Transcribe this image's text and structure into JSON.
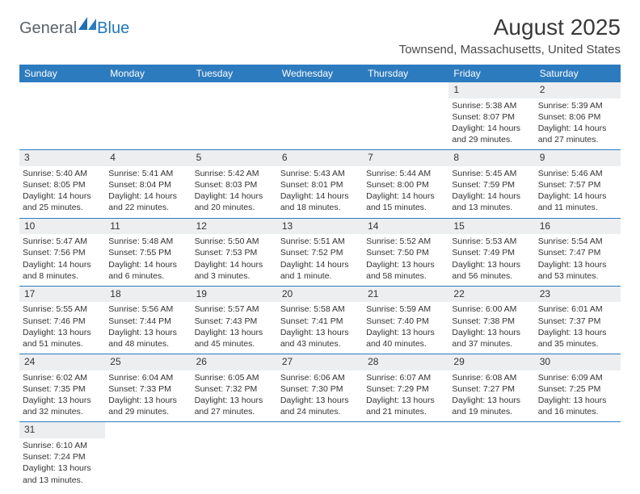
{
  "logo": {
    "text1": "General",
    "text2": "Blue"
  },
  "title": {
    "month": "August 2025",
    "location": "Townsend, Massachusetts, United States"
  },
  "colors": {
    "header_bg": "#2d7bbf",
    "header_text": "#ffffff",
    "daynum_bg": "#edeef0",
    "rule": "#2d7bbf",
    "text": "#333333"
  },
  "day_headers": [
    "Sunday",
    "Monday",
    "Tuesday",
    "Wednesday",
    "Thursday",
    "Friday",
    "Saturday"
  ],
  "weeks": [
    [
      null,
      null,
      null,
      null,
      null,
      {
        "n": "1",
        "sr": "Sunrise: 5:38 AM",
        "ss": "Sunset: 8:07 PM",
        "dl1": "Daylight: 14 hours",
        "dl2": "and 29 minutes."
      },
      {
        "n": "2",
        "sr": "Sunrise: 5:39 AM",
        "ss": "Sunset: 8:06 PM",
        "dl1": "Daylight: 14 hours",
        "dl2": "and 27 minutes."
      }
    ],
    [
      {
        "n": "3",
        "sr": "Sunrise: 5:40 AM",
        "ss": "Sunset: 8:05 PM",
        "dl1": "Daylight: 14 hours",
        "dl2": "and 25 minutes."
      },
      {
        "n": "4",
        "sr": "Sunrise: 5:41 AM",
        "ss": "Sunset: 8:04 PM",
        "dl1": "Daylight: 14 hours",
        "dl2": "and 22 minutes."
      },
      {
        "n": "5",
        "sr": "Sunrise: 5:42 AM",
        "ss": "Sunset: 8:03 PM",
        "dl1": "Daylight: 14 hours",
        "dl2": "and 20 minutes."
      },
      {
        "n": "6",
        "sr": "Sunrise: 5:43 AM",
        "ss": "Sunset: 8:01 PM",
        "dl1": "Daylight: 14 hours",
        "dl2": "and 18 minutes."
      },
      {
        "n": "7",
        "sr": "Sunrise: 5:44 AM",
        "ss": "Sunset: 8:00 PM",
        "dl1": "Daylight: 14 hours",
        "dl2": "and 15 minutes."
      },
      {
        "n": "8",
        "sr": "Sunrise: 5:45 AM",
        "ss": "Sunset: 7:59 PM",
        "dl1": "Daylight: 14 hours",
        "dl2": "and 13 minutes."
      },
      {
        "n": "9",
        "sr": "Sunrise: 5:46 AM",
        "ss": "Sunset: 7:57 PM",
        "dl1": "Daylight: 14 hours",
        "dl2": "and 11 minutes."
      }
    ],
    [
      {
        "n": "10",
        "sr": "Sunrise: 5:47 AM",
        "ss": "Sunset: 7:56 PM",
        "dl1": "Daylight: 14 hours",
        "dl2": "and 8 minutes."
      },
      {
        "n": "11",
        "sr": "Sunrise: 5:48 AM",
        "ss": "Sunset: 7:55 PM",
        "dl1": "Daylight: 14 hours",
        "dl2": "and 6 minutes."
      },
      {
        "n": "12",
        "sr": "Sunrise: 5:50 AM",
        "ss": "Sunset: 7:53 PM",
        "dl1": "Daylight: 14 hours",
        "dl2": "and 3 minutes."
      },
      {
        "n": "13",
        "sr": "Sunrise: 5:51 AM",
        "ss": "Sunset: 7:52 PM",
        "dl1": "Daylight: 14 hours",
        "dl2": "and 1 minute."
      },
      {
        "n": "14",
        "sr": "Sunrise: 5:52 AM",
        "ss": "Sunset: 7:50 PM",
        "dl1": "Daylight: 13 hours",
        "dl2": "and 58 minutes."
      },
      {
        "n": "15",
        "sr": "Sunrise: 5:53 AM",
        "ss": "Sunset: 7:49 PM",
        "dl1": "Daylight: 13 hours",
        "dl2": "and 56 minutes."
      },
      {
        "n": "16",
        "sr": "Sunrise: 5:54 AM",
        "ss": "Sunset: 7:47 PM",
        "dl1": "Daylight: 13 hours",
        "dl2": "and 53 minutes."
      }
    ],
    [
      {
        "n": "17",
        "sr": "Sunrise: 5:55 AM",
        "ss": "Sunset: 7:46 PM",
        "dl1": "Daylight: 13 hours",
        "dl2": "and 51 minutes."
      },
      {
        "n": "18",
        "sr": "Sunrise: 5:56 AM",
        "ss": "Sunset: 7:44 PM",
        "dl1": "Daylight: 13 hours",
        "dl2": "and 48 minutes."
      },
      {
        "n": "19",
        "sr": "Sunrise: 5:57 AM",
        "ss": "Sunset: 7:43 PM",
        "dl1": "Daylight: 13 hours",
        "dl2": "and 45 minutes."
      },
      {
        "n": "20",
        "sr": "Sunrise: 5:58 AM",
        "ss": "Sunset: 7:41 PM",
        "dl1": "Daylight: 13 hours",
        "dl2": "and 43 minutes."
      },
      {
        "n": "21",
        "sr": "Sunrise: 5:59 AM",
        "ss": "Sunset: 7:40 PM",
        "dl1": "Daylight: 13 hours",
        "dl2": "and 40 minutes."
      },
      {
        "n": "22",
        "sr": "Sunrise: 6:00 AM",
        "ss": "Sunset: 7:38 PM",
        "dl1": "Daylight: 13 hours",
        "dl2": "and 37 minutes."
      },
      {
        "n": "23",
        "sr": "Sunrise: 6:01 AM",
        "ss": "Sunset: 7:37 PM",
        "dl1": "Daylight: 13 hours",
        "dl2": "and 35 minutes."
      }
    ],
    [
      {
        "n": "24",
        "sr": "Sunrise: 6:02 AM",
        "ss": "Sunset: 7:35 PM",
        "dl1": "Daylight: 13 hours",
        "dl2": "and 32 minutes."
      },
      {
        "n": "25",
        "sr": "Sunrise: 6:04 AM",
        "ss": "Sunset: 7:33 PM",
        "dl1": "Daylight: 13 hours",
        "dl2": "and 29 minutes."
      },
      {
        "n": "26",
        "sr": "Sunrise: 6:05 AM",
        "ss": "Sunset: 7:32 PM",
        "dl1": "Daylight: 13 hours",
        "dl2": "and 27 minutes."
      },
      {
        "n": "27",
        "sr": "Sunrise: 6:06 AM",
        "ss": "Sunset: 7:30 PM",
        "dl1": "Daylight: 13 hours",
        "dl2": "and 24 minutes."
      },
      {
        "n": "28",
        "sr": "Sunrise: 6:07 AM",
        "ss": "Sunset: 7:29 PM",
        "dl1": "Daylight: 13 hours",
        "dl2": "and 21 minutes."
      },
      {
        "n": "29",
        "sr": "Sunrise: 6:08 AM",
        "ss": "Sunset: 7:27 PM",
        "dl1": "Daylight: 13 hours",
        "dl2": "and 19 minutes."
      },
      {
        "n": "30",
        "sr": "Sunrise: 6:09 AM",
        "ss": "Sunset: 7:25 PM",
        "dl1": "Daylight: 13 hours",
        "dl2": "and 16 minutes."
      }
    ],
    [
      {
        "n": "31",
        "sr": "Sunrise: 6:10 AM",
        "ss": "Sunset: 7:24 PM",
        "dl1": "Daylight: 13 hours",
        "dl2": "and 13 minutes."
      },
      null,
      null,
      null,
      null,
      null,
      null
    ]
  ]
}
